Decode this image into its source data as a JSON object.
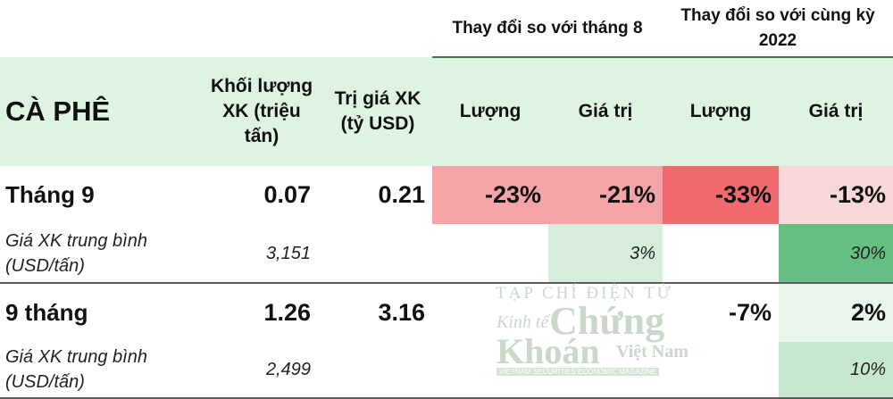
{
  "header": {
    "group_change_month": "Thay đổi so với tháng 8",
    "group_change_yoy": "Thay đổi so với cùng kỳ 2022",
    "product": "CÀ PHÊ",
    "col_volume": "Khối lượng XK (triệu tấn)",
    "col_value": "Trị giá XK (tỷ USD)",
    "col_m_volume": "Lượng",
    "col_m_value": "Giá trị",
    "col_y_volume": "Lượng",
    "col_y_value": "Giá trị"
  },
  "rows": {
    "month9": {
      "label": "Tháng 9",
      "volume": "0.07",
      "value": "0.21",
      "m_volume": "-23%",
      "m_value": "-21%",
      "y_volume": "-33%",
      "y_value": "-13%"
    },
    "month9_avg": {
      "label": "Giá XK trung bình (USD/tấn)",
      "volume": "3,151",
      "m_value": "3%",
      "y_value": "30%"
    },
    "ytd": {
      "label": "9 tháng",
      "volume": "1.26",
      "value": "3.16",
      "y_volume": "-7%",
      "y_value": "2%"
    },
    "ytd_avg": {
      "label": "Giá XK trung bình (USD/tấn)",
      "volume": "2,499",
      "y_value": "10%"
    }
  },
  "colors": {
    "header_green": "#dff3e3",
    "neg_strong": "#f06a6e",
    "neg_mid": "#f4a4a6",
    "neg_light": "#f8d7d8",
    "pos_strong": "#66bf82",
    "pos_light": "#c7e8cf",
    "pos_pale": "#d6eddb",
    "border": "#5a5a5a"
  },
  "watermark": {
    "line1": "TẠP CHÍ ĐIỆN TỬ",
    "line2a": "Kinh tế",
    "line2b": "Chứng",
    "line3a": "Khoán",
    "line3b": "Việt Nam",
    "line4": "VIETNAM SECURITIES ECONOMIC MAGAZINE"
  }
}
